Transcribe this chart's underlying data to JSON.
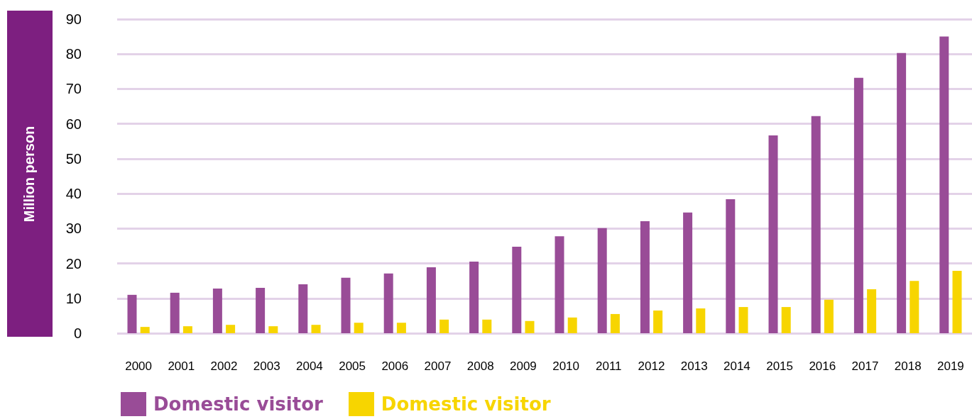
{
  "chart_data": {
    "type": "bar",
    "ylabel": "Million person",
    "categories": [
      "2000",
      "2001",
      "2002",
      "2003",
      "2004",
      "2005",
      "2006",
      "2007",
      "2008",
      "2009",
      "2010",
      "2011",
      "2012",
      "2013",
      "2014",
      "2015",
      "2016",
      "2017",
      "2018",
      "2019"
    ],
    "series": [
      {
        "name": "Domestic visitor",
        "color": "#994c97",
        "values": [
          11,
          11.6,
          12.8,
          13,
          14,
          15.9,
          17.1,
          18.9,
          20.5,
          24.8,
          27.8,
          30.1,
          32.1,
          34.6,
          38.4,
          56.7,
          62.2,
          73.2,
          80.3,
          85
        ]
      },
      {
        "name": "Domestic visitor",
        "color": "#f7d500",
        "values": [
          1.8,
          2,
          2.4,
          2,
          2.4,
          3,
          3,
          3.9,
          3.9,
          3.5,
          4.5,
          5.5,
          6.5,
          7.1,
          7.5,
          7.5,
          9.6,
          12.6,
          15,
          17.9
        ]
      }
    ],
    "ylim": [
      0,
      90
    ],
    "yticks": [
      0,
      10,
      20,
      30,
      40,
      50,
      60,
      70,
      80,
      90
    ],
    "grid": "y",
    "legend": "bottom left"
  }
}
